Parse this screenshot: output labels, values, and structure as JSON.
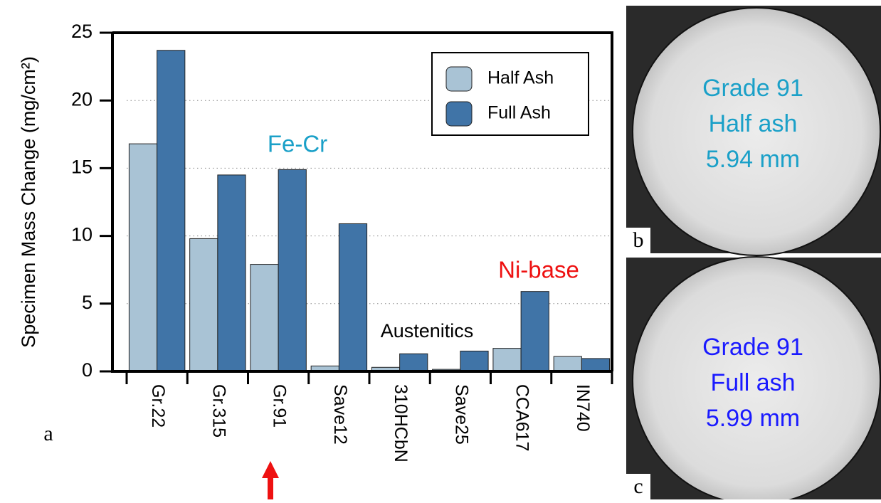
{
  "chart_data": {
    "type": "bar",
    "ylabel": "Specimen Mass Change (mg/cm²)",
    "categories": [
      "Gr.22",
      "Gr.315",
      "Gr.91",
      "Save12",
      "310HCbN",
      "Save25",
      "CCA617",
      "IN740"
    ],
    "series": [
      {
        "name": "Half Ash",
        "color": "#a9c3d5",
        "values": [
          16.8,
          9.8,
          7.9,
          0.4,
          0.3,
          0.15,
          1.7,
          1.1
        ]
      },
      {
        "name": "Full Ash",
        "color": "#4074a7",
        "values": [
          23.7,
          14.5,
          14.9,
          10.9,
          1.3,
          1.5,
          5.9,
          0.95
        ]
      }
    ],
    "ylim": [
      0,
      25
    ],
    "yticks": [
      0,
      5,
      10,
      15,
      20,
      25
    ],
    "grid": true,
    "legend": "upper right",
    "annotations": [
      {
        "text": "Fe-Cr",
        "color": "#1aa0c8"
      },
      {
        "text": "Austenitics",
        "color": "#000000"
      },
      {
        "text": "Ni-base",
        "color": "#ee1111"
      }
    ],
    "highlight_category": 2
  },
  "panel_label": "a",
  "micrographs": [
    {
      "label": "b",
      "color": "#1aa0c8",
      "lines": [
        "Grade 91",
        "Half ash",
        "5.94 mm"
      ]
    },
    {
      "label": "c",
      "color": "#1a1aff",
      "lines": [
        "Grade 91",
        "Full ash",
        "5.99 mm"
      ]
    }
  ]
}
